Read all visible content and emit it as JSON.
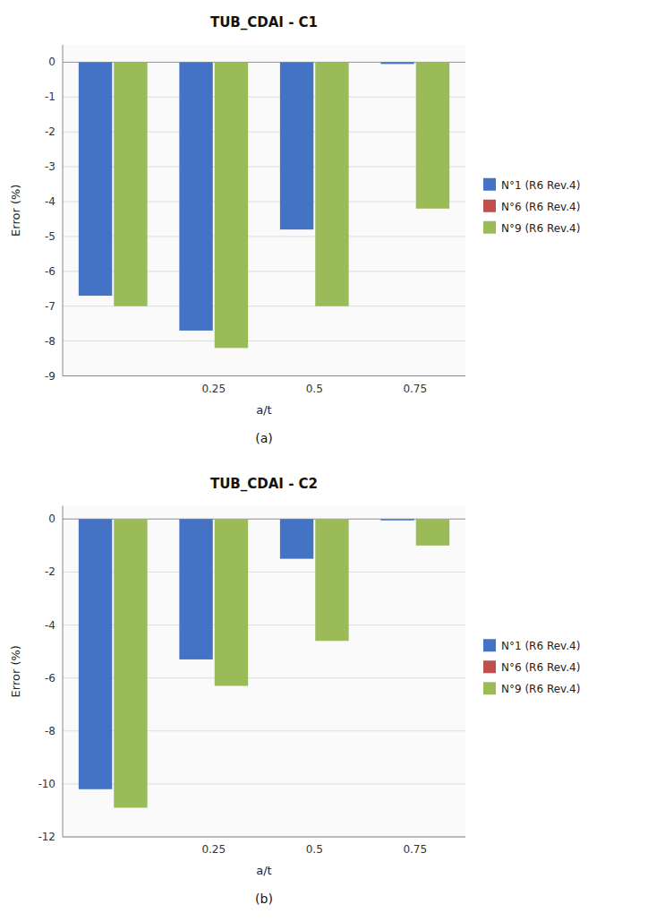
{
  "chart_data": [
    {
      "type": "bar",
      "title": "TUB_CDAI - C1",
      "subtitle": "(a)",
      "xlabel": "a/t",
      "ylabel": "Error (%)",
      "categories": [
        null,
        "0.25",
        "0.5",
        "0.75"
      ],
      "series": [
        {
          "name": "N°1 (R6 Rev.4)",
          "color": "#4472C4",
          "values": [
            -6.7,
            -7.7,
            -4.8,
            -0.05
          ]
        },
        {
          "name": "N°6 (R6 Rev.4)",
          "color": "#C0504D",
          "values": [
            null,
            null,
            null,
            null
          ]
        },
        {
          "name": "N°9 (R6 Rev.4)",
          "color": "#9BBB59",
          "values": [
            -7.0,
            -8.2,
            -7.0,
            -4.2
          ]
        }
      ],
      "ylim": [
        -9,
        0.5
      ],
      "yticks": [
        0,
        -1,
        -2,
        -3,
        -4,
        -5,
        -6,
        -7,
        -8,
        -9
      ],
      "grid": true,
      "legend": "right"
    },
    {
      "type": "bar",
      "title": "TUB_CDAI - C2",
      "subtitle": "(b)",
      "xlabel": "a/t",
      "ylabel": "Error (%)",
      "categories": [
        null,
        "0.25",
        "0.5",
        "0.75"
      ],
      "series": [
        {
          "name": "N°1 (R6 Rev.4)",
          "color": "#4472C4",
          "values": [
            -10.2,
            -5.3,
            -1.5,
            -0.05
          ]
        },
        {
          "name": "N°6 (R6 Rev.4)",
          "color": "#C0504D",
          "values": [
            null,
            null,
            null,
            null
          ]
        },
        {
          "name": "N°9 (R6 Rev.4)",
          "color": "#9BBB59",
          "values": [
            -10.9,
            -6.3,
            -4.6,
            -1.0
          ]
        }
      ],
      "ylim": [
        -12,
        0.5
      ],
      "yticks": [
        0,
        -2,
        -4,
        -6,
        -8,
        -10,
        -12
      ],
      "grid": true,
      "legend": "right"
    }
  ]
}
